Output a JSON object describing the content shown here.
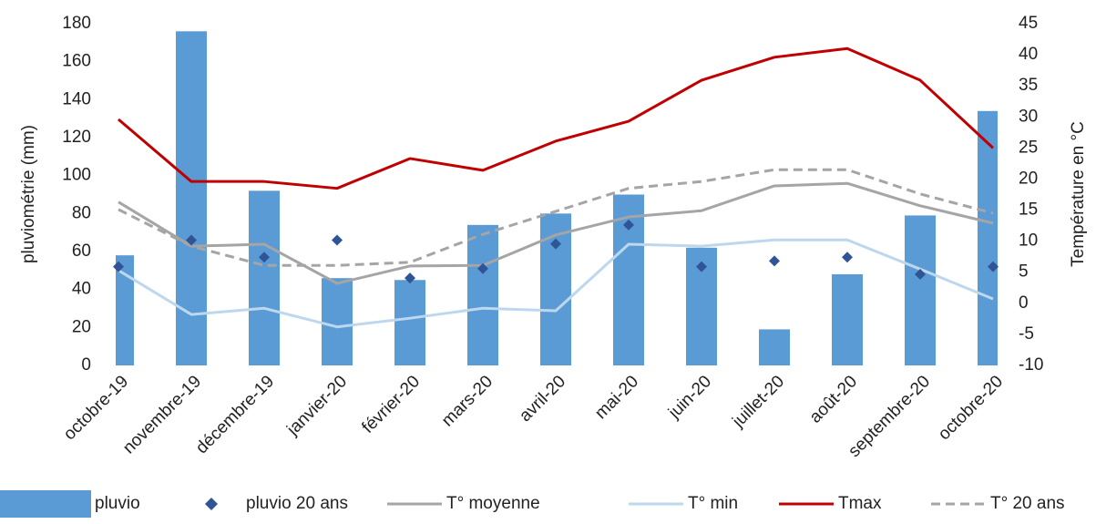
{
  "chart_data": {
    "type": "combo",
    "ylabel": "pluviométrie (mm)",
    "y2label": "Température en °C",
    "categories": [
      "octobre-19",
      "novembre-19",
      "décembre-19",
      "janvier-20",
      "février-20",
      "mars-20",
      "avril-20",
      "mai-20",
      "juin-20",
      "juillet-20",
      "août-20",
      "septembre-20",
      "octobre-20"
    ],
    "ylim": [
      0,
      180
    ],
    "yticks": [
      0,
      20,
      40,
      60,
      80,
      100,
      120,
      140,
      160,
      180
    ],
    "y2lim": [
      -10,
      45
    ],
    "y2ticks": [
      -10,
      -5,
      0,
      5,
      10,
      15,
      20,
      25,
      30,
      35,
      40,
      45
    ],
    "grid": false,
    "legend": "bottom",
    "series": [
      {
        "name": "pluvio",
        "type": "bar",
        "color": "#5b9bd5",
        "values": [
          58,
          176,
          92,
          46,
          45,
          74,
          80,
          90,
          62,
          19,
          48,
          79,
          134
        ]
      },
      {
        "name": "pluvio 20 ans",
        "type": "scatter",
        "color": "#2f5597",
        "values": [
          52,
          66,
          57,
          66,
          46,
          51,
          64,
          74,
          52,
          55,
          57,
          48,
          52
        ]
      },
      {
        "name": "T° moyenne",
        "type": "line",
        "axis": "y2",
        "color": "#a5a5a5",
        "values": [
          16.3,
          9.2,
          9.5,
          3.2,
          6,
          6.1,
          11,
          13.9,
          14.9,
          18.9,
          19.3,
          15.7,
          12.9
        ]
      },
      {
        "name": "T° min",
        "type": "line",
        "axis": "y2",
        "color": "#bdd7ee",
        "values": [
          5.3,
          -1.8,
          -0.8,
          -3.8,
          -2.4,
          -0.8,
          -1.2,
          9.5,
          9.2,
          10.2,
          10.2,
          5.5,
          0.7
        ]
      },
      {
        "name": "Tmax",
        "type": "line",
        "axis": "y2",
        "color": "#c00000",
        "values": [
          29.6,
          19.6,
          19.6,
          18.5,
          23.3,
          21.4,
          26.1,
          29.3,
          35.9,
          39.6,
          41,
          35.9,
          25
        ]
      },
      {
        "name": "T° 20 ans",
        "type": "line",
        "axis": "y2",
        "dashed": true,
        "color": "#a5a5a5",
        "values": [
          15.1,
          9.2,
          6.1,
          6.1,
          6.6,
          11.1,
          14.8,
          18.5,
          19.6,
          21.5,
          21.5,
          17.6,
          14.5
        ]
      }
    ]
  }
}
